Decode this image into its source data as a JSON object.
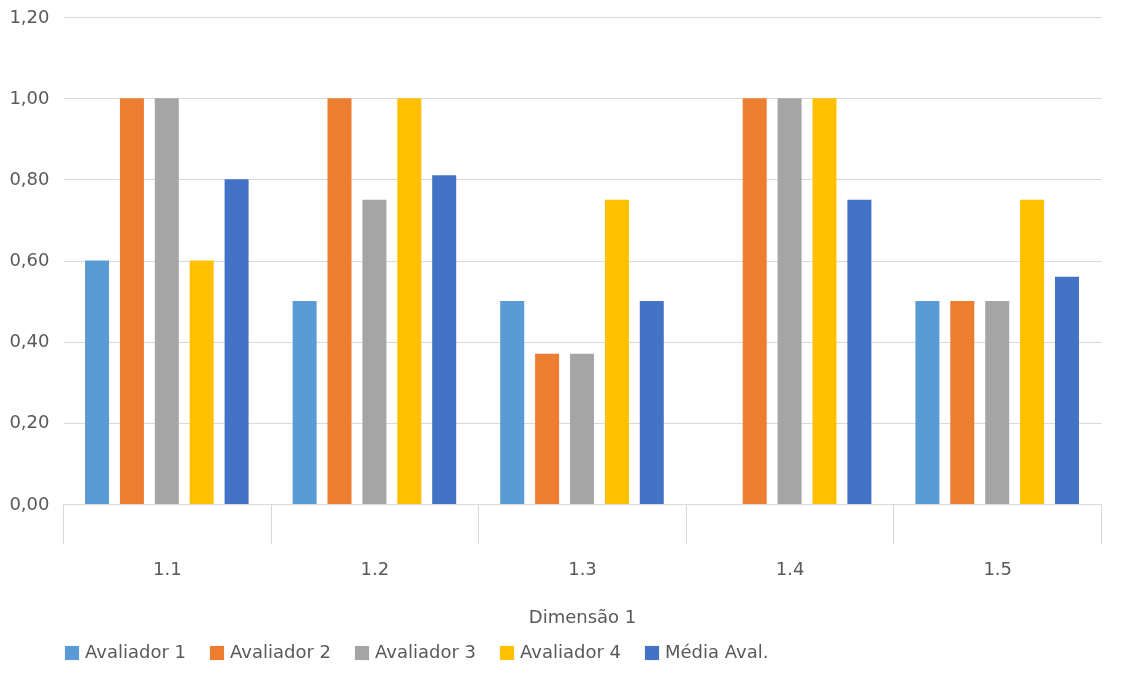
{
  "chart_data": {
    "type": "bar",
    "xlabel": "Dimensão 1",
    "categories": [
      "1.1",
      "1.2",
      "1.3",
      "1.4",
      "1.5"
    ],
    "series": [
      {
        "name": "Avaliador 1",
        "color": "#5b9bd5",
        "values": [
          0.6,
          0.5,
          0.5,
          0,
          0.5
        ]
      },
      {
        "name": "Avaliador 2",
        "color": "#ed7d31",
        "values": [
          1.0,
          1.0,
          0.37,
          1.0,
          0.5
        ]
      },
      {
        "name": "Avaliador 3",
        "color": "#a5a5a5",
        "values": [
          1.0,
          0.75,
          0.37,
          1.0,
          0.5
        ]
      },
      {
        "name": "Avaliador 4",
        "color": "#ffc000",
        "values": [
          0.6,
          1.0,
          0.75,
          1.0,
          0.75
        ]
      },
      {
        "name": "Média Aval.",
        "color": "#4472c4",
        "values": [
          0.8,
          0.81,
          0.5,
          0.75,
          0.56
        ]
      }
    ],
    "ylim": [
      0,
      1.2
    ],
    "yticks": [
      {
        "value": 0,
        "label": "0,00"
      },
      {
        "value": 0.2,
        "label": "0,20"
      },
      {
        "value": 0.4,
        "label": "0,40"
      },
      {
        "value": 0.6,
        "label": "0,60"
      },
      {
        "value": 0.8,
        "label": "0,80"
      },
      {
        "value": 1.0,
        "label": "1,00"
      },
      {
        "value": 1.2,
        "label": "1,20"
      }
    ],
    "grid": "y",
    "legend": "bottom"
  }
}
